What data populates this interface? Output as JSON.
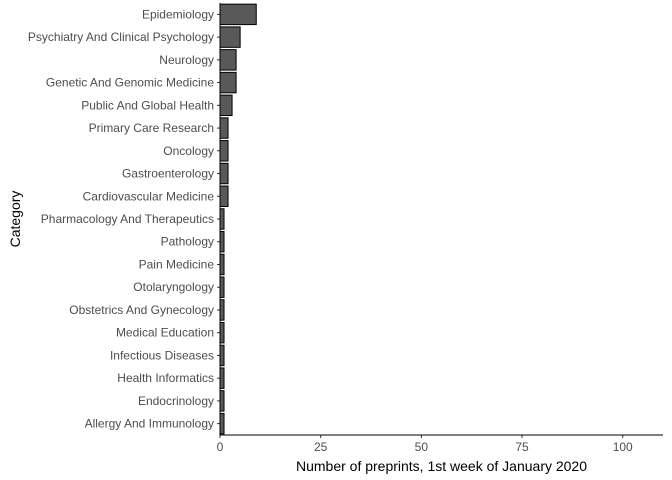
{
  "chart_data": {
    "type": "bar",
    "orientation": "horizontal",
    "categories": [
      "Epidemiology",
      "Psychiatry And Clinical Psychology",
      "Neurology",
      "Genetic And Genomic Medicine",
      "Public And Global Health",
      "Primary Care Research",
      "Oncology",
      "Gastroenterology",
      "Cardiovascular Medicine",
      "Pharmacology And Therapeutics",
      "Pathology",
      "Pain Medicine",
      "Otolaryngology",
      "Obstetrics And Gynecology",
      "Medical Education",
      "Infectious Diseases",
      "Health Informatics",
      "Endocrinology",
      "Allergy And Immunology"
    ],
    "values": [
      9,
      5,
      4,
      4,
      3,
      2,
      2,
      2,
      2,
      1,
      1,
      1,
      1,
      1,
      1,
      1,
      1,
      1,
      1
    ],
    "xlabel": "Number of preprints, 1st week of January 2020",
    "ylabel": "Category",
    "xlim": [
      0,
      110
    ],
    "xticks": [
      0,
      25,
      50,
      75,
      100
    ],
    "grid": false,
    "legend": "none",
    "bar_color": "#595959",
    "bar_outline": "#000000"
  }
}
